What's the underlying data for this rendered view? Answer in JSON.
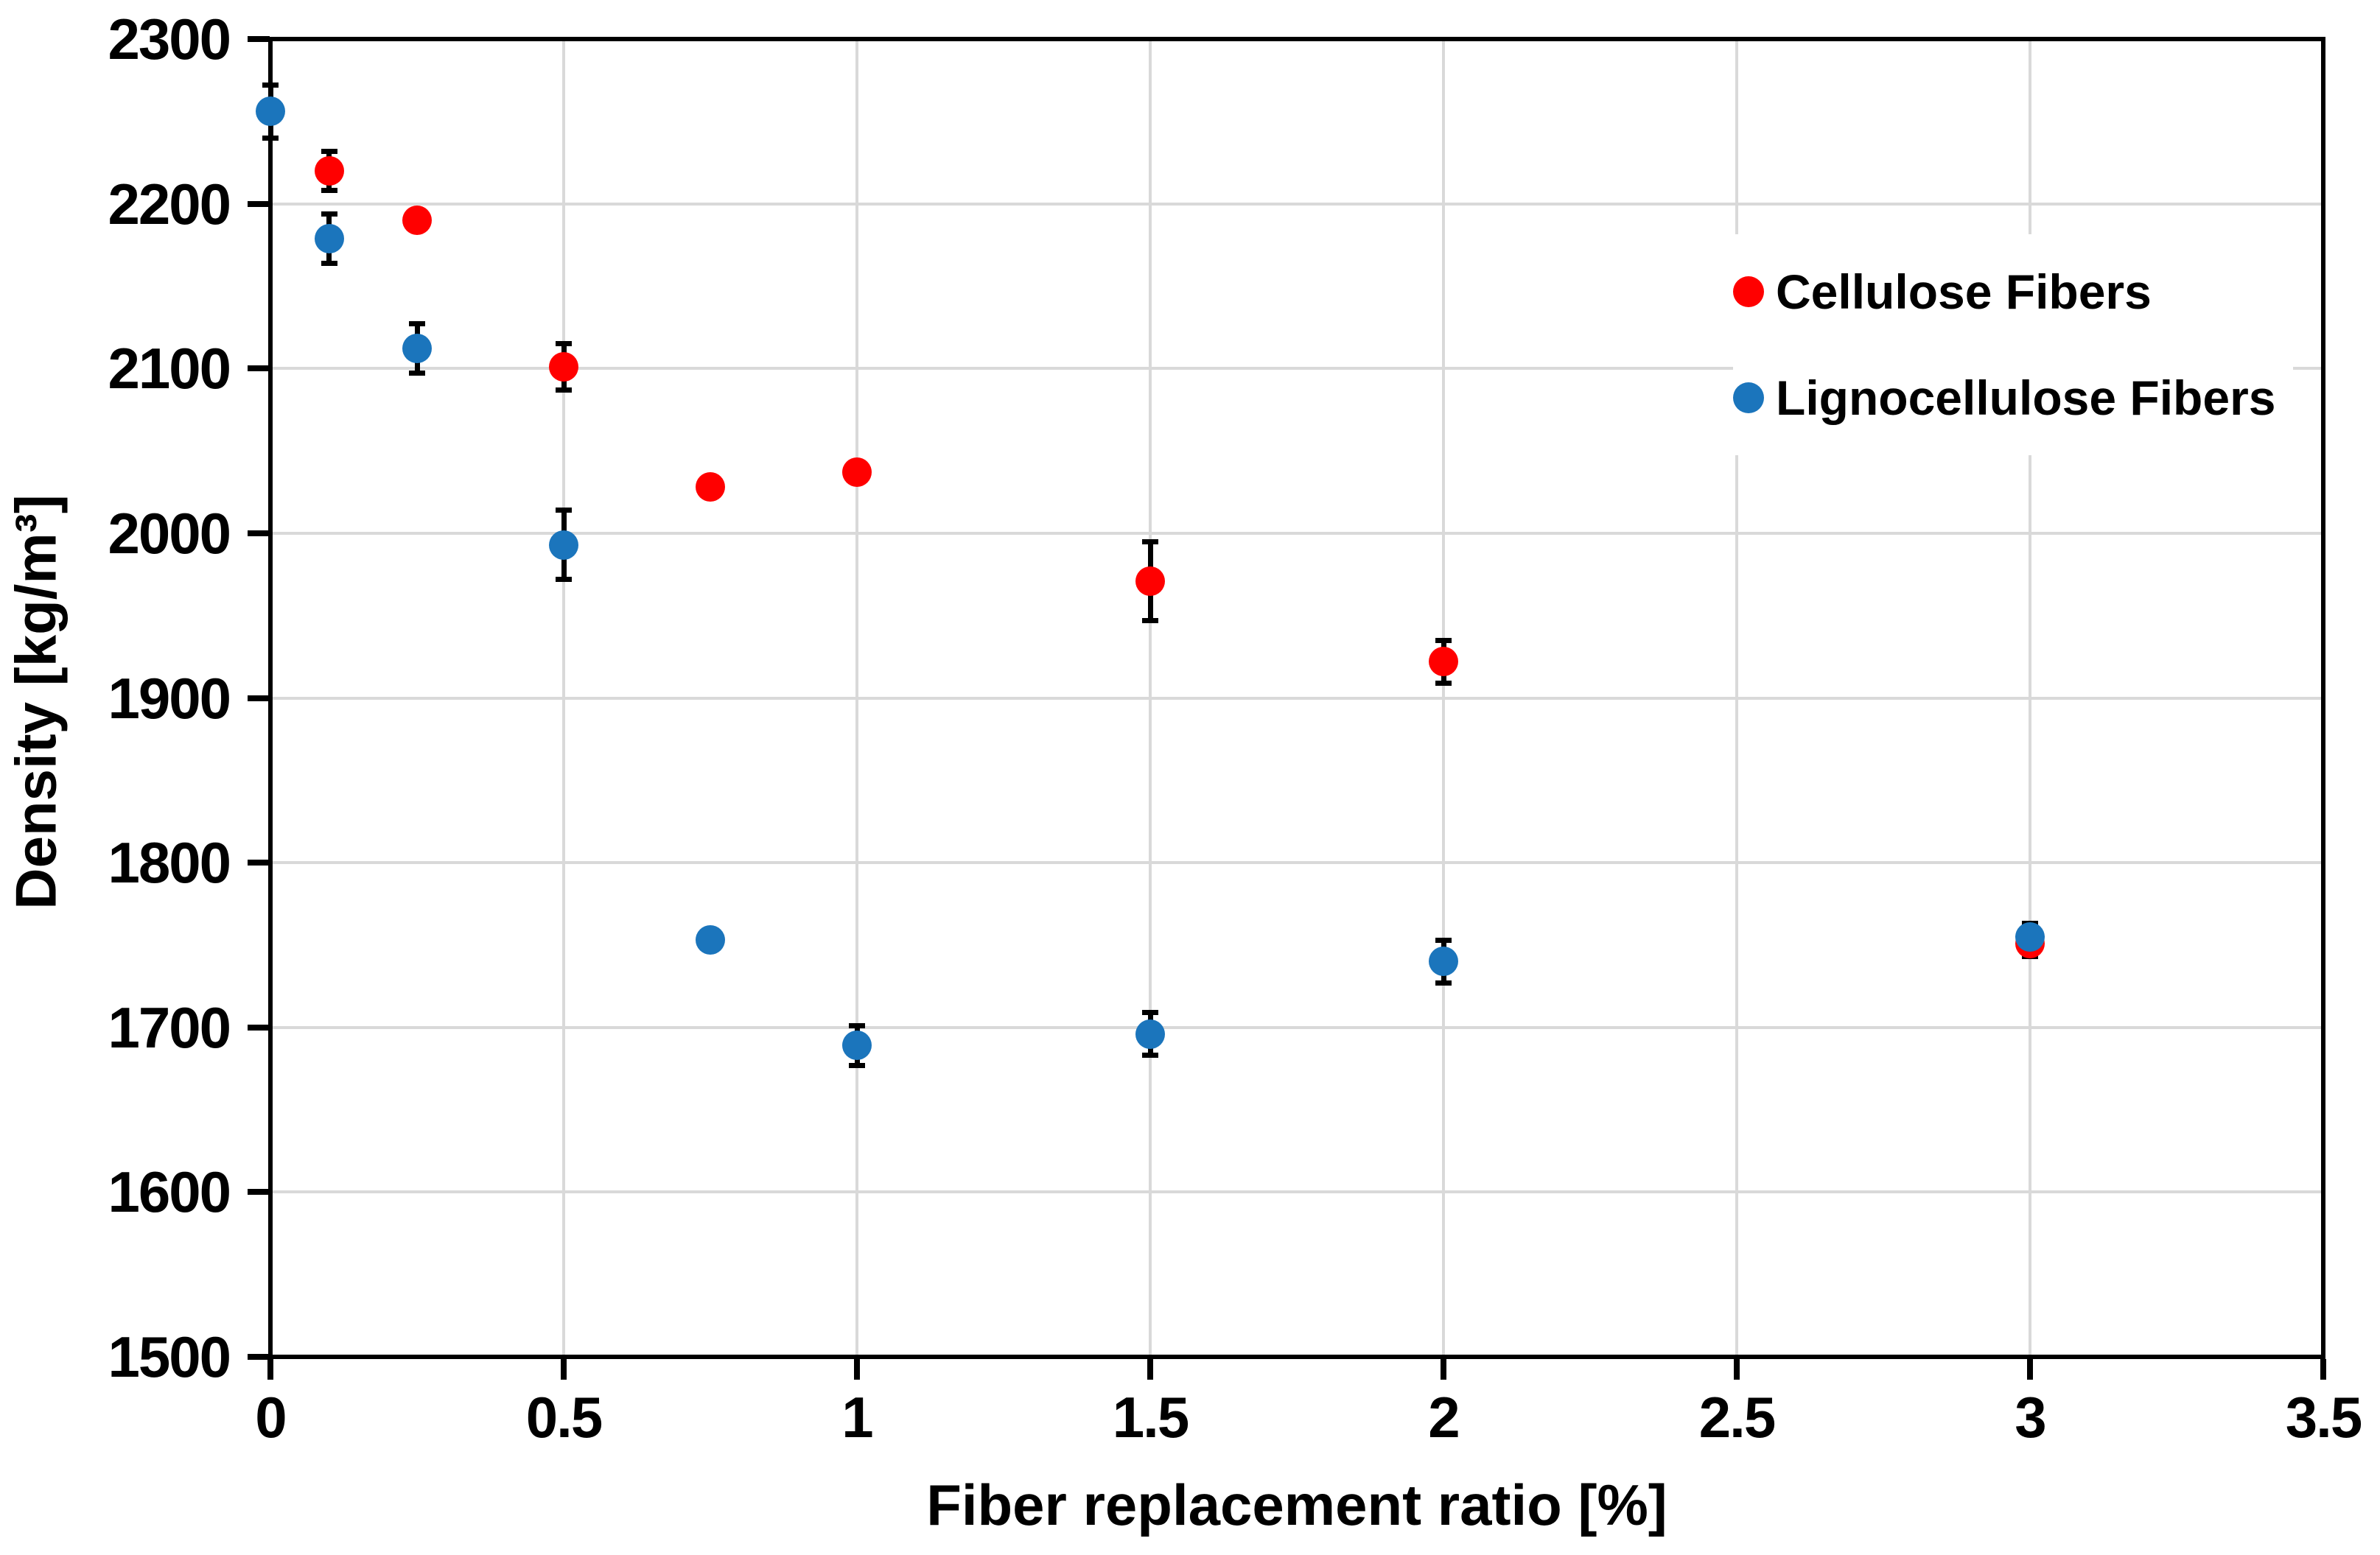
{
  "page": {
    "background": "#FFFFFF"
  },
  "chart_data": {
    "type": "scatter",
    "title": "",
    "xlabel": "Fiber replacement ratio [%]",
    "ylabel": "Density [kg/m³]",
    "xlim": [
      0,
      3.5
    ],
    "ylim": [
      1500,
      2300
    ],
    "x_ticks": [
      0,
      0.5,
      1,
      1.5,
      2,
      2.5,
      3,
      3.5
    ],
    "y_ticks": [
      1500,
      1600,
      1700,
      1800,
      1900,
      2000,
      2100,
      2200,
      2300
    ],
    "grid": {
      "show": true,
      "color": "#D9D9D9",
      "x_lines": [
        0.5,
        1,
        1.5,
        2,
        2.5,
        3
      ],
      "y_lines": [
        1600,
        1700,
        1800,
        1900,
        2000,
        2100,
        2200
      ]
    },
    "axis_color": "#000000",
    "error_bar_color": "#000000",
    "legend_position": "upper-right-inside",
    "series": [
      {
        "name": "Cellulose Fibers",
        "color": "#FF0000",
        "marker": "circle",
        "points": [
          {
            "x": 0.1,
            "y": 2220,
            "err": 12
          },
          {
            "x": 0.25,
            "y": 2190,
            "err": 0
          },
          {
            "x": 0.5,
            "y": 2101,
            "err": 14
          },
          {
            "x": 0.75,
            "y": 2028,
            "err": 0
          },
          {
            "x": 1,
            "y": 2037,
            "err": 0
          },
          {
            "x": 1.5,
            "y": 1971,
            "err": 24
          },
          {
            "x": 2,
            "y": 1922,
            "err": 13
          },
          {
            "x": 3,
            "y": 1751,
            "err": 8
          }
        ]
      },
      {
        "name": "Lignocellulose Fibers",
        "color": "#1B75BC",
        "marker": "circle",
        "points": [
          {
            "x": 0,
            "y": 2256,
            "err": 16
          },
          {
            "x": 0.1,
            "y": 2179,
            "err": 15
          },
          {
            "x": 0.25,
            "y": 2112,
            "err": 15
          },
          {
            "x": 0.5,
            "y": 1993,
            "err": 21
          },
          {
            "x": 0.75,
            "y": 1753,
            "err": 0
          },
          {
            "x": 1,
            "y": 1689,
            "err": 12
          },
          {
            "x": 1.5,
            "y": 1696,
            "err": 13
          },
          {
            "x": 2,
            "y": 1740,
            "err": 13
          },
          {
            "x": 3,
            "y": 1755,
            "err": 8
          }
        ]
      }
    ]
  }
}
